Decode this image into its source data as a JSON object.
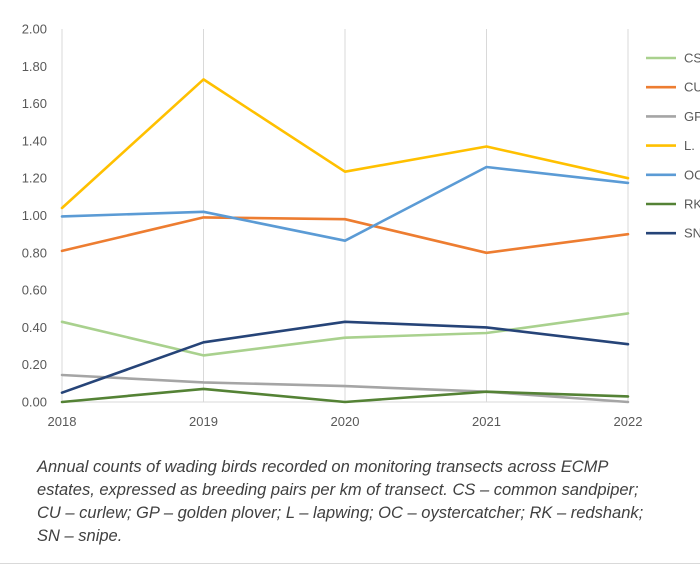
{
  "chart_data": {
    "type": "line",
    "title": "",
    "xlabel": "",
    "ylabel": "",
    "x": [
      "2018",
      "2019",
      "2020",
      "2021",
      "2022"
    ],
    "y_ticks": [
      "0.00",
      "0.20",
      "0.40",
      "0.60",
      "0.80",
      "1.00",
      "1.20",
      "1.40",
      "1.60",
      "1.80",
      "2.00"
    ],
    "ylim": [
      0,
      2.0
    ],
    "grid": "vertical",
    "legend_position": "right",
    "series": [
      {
        "name": "CS",
        "color": "#a9d18e",
        "values": [
          0.43,
          0.25,
          0.345,
          0.37,
          0.475
        ]
      },
      {
        "name": "CU",
        "color": "#ed7d31",
        "values": [
          0.81,
          0.99,
          0.98,
          0.8,
          0.9
        ]
      },
      {
        "name": "GP",
        "color": "#a5a5a5",
        "values": [
          0.145,
          0.105,
          0.085,
          0.055,
          0.0
        ]
      },
      {
        "name": "L.",
        "color": "#ffc000",
        "values": [
          1.04,
          1.73,
          1.235,
          1.37,
          1.2
        ]
      },
      {
        "name": "OC",
        "color": "#5b9bd5",
        "values": [
          0.995,
          1.02,
          0.865,
          1.26,
          1.175
        ]
      },
      {
        "name": "RK",
        "color": "#548235",
        "values": [
          0.0,
          0.07,
          0.0,
          0.055,
          0.03
        ]
      },
      {
        "name": "SN",
        "color": "#264478",
        "values": [
          0.05,
          0.32,
          0.43,
          0.4,
          0.31
        ]
      }
    ]
  },
  "caption": "Annual counts of wading birds recorded on monitoring transects across ECMP estates, expressed as breeding pairs per km of transect. CS – common sandpiper; CU – curlew; GP – golden plover; L – lapwing; OC – oystercatcher; RK – redshank; SN – snipe."
}
